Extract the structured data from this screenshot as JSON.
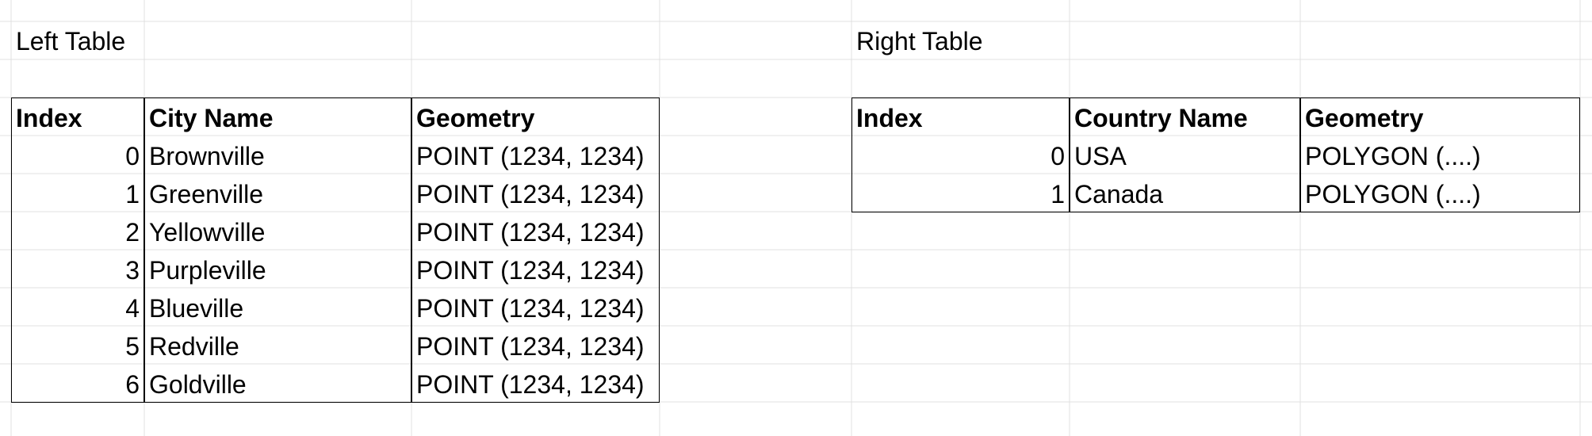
{
  "left_table": {
    "caption": "Left Table",
    "headers": [
      "Index",
      "City Name",
      "Geometry"
    ],
    "rows": [
      [
        "0",
        "Brownville",
        "POINT (1234, 1234)"
      ],
      [
        "1",
        "Greenville",
        "POINT (1234, 1234)"
      ],
      [
        "2",
        "Yellowville",
        "POINT (1234, 1234)"
      ],
      [
        "3",
        "Purpleville",
        "POINT (1234, 1234)"
      ],
      [
        "4",
        "Blueville",
        "POINT (1234, 1234)"
      ],
      [
        "5",
        "Redville",
        "POINT (1234, 1234)"
      ],
      [
        "6",
        "Goldville",
        "POINT (1234, 1234)"
      ]
    ]
  },
  "right_table": {
    "caption": "Right Table",
    "headers": [
      "Index",
      "Country Name",
      "Geometry"
    ],
    "rows": [
      [
        "0",
        "USA",
        "POLYGON (....)"
      ],
      [
        "1",
        "Canada",
        "POLYGON (....)"
      ]
    ]
  },
  "colors": {
    "gridline": "#e1e1e1",
    "border": "#000000"
  }
}
